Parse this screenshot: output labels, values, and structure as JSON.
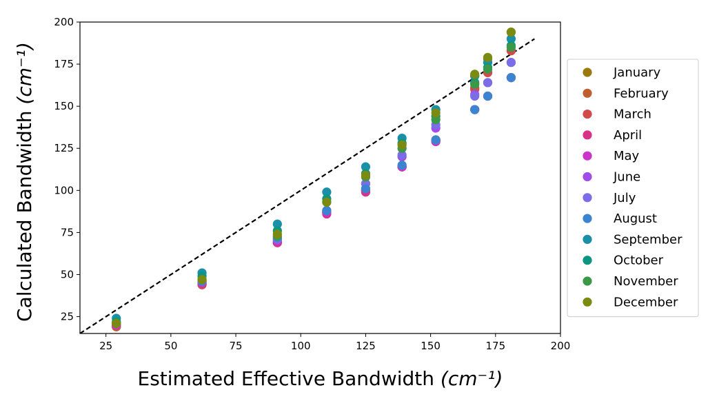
{
  "chart_data": {
    "type": "scatter",
    "xlabel": "Estimated Effective Bandwidth",
    "xlabel_unit": "(cm⁻¹)",
    "ylabel": "Calculated Bandwidth",
    "ylabel_unit": "(cm⁻¹)",
    "xlim": [
      15,
      200
    ],
    "ylim": [
      15,
      200
    ],
    "x_ticks": [
      25,
      50,
      75,
      100,
      125,
      150,
      175,
      200
    ],
    "y_ticks": [
      25,
      50,
      75,
      100,
      125,
      150,
      175,
      200
    ],
    "legend_position": "right",
    "grid": false,
    "reference_line": {
      "style": "dashed",
      "color": "#000000",
      "x": [
        15,
        190
      ],
      "y": [
        15,
        190
      ]
    },
    "x": [
      29,
      62,
      91,
      110,
      125,
      139,
      152,
      167,
      172,
      181
    ],
    "series": [
      {
        "name": "January",
        "color": "#9a7a0e",
        "values": [
          19,
          44,
          69,
          87,
          100,
          114,
          130,
          168,
          178,
          194
        ]
      },
      {
        "name": "February",
        "color": "#c05e30",
        "values": [
          19,
          44,
          69,
          87,
          100,
          114,
          130,
          161,
          170,
          183
        ]
      },
      {
        "name": "March",
        "color": "#d24a4a",
        "values": [
          20,
          44,
          69,
          87,
          100,
          114,
          130,
          160,
          170,
          183
        ]
      },
      {
        "name": "April",
        "color": "#d9308a",
        "values": [
          20,
          45,
          69,
          86,
          99,
          114,
          129,
          148,
          156,
          167
        ]
      },
      {
        "name": "May",
        "color": "#c934c9",
        "values": [
          20,
          45,
          70,
          87,
          101,
          114,
          129,
          148,
          156,
          167
        ]
      },
      {
        "name": "June",
        "color": "#a14ce8",
        "values": [
          21,
          46,
          71,
          88,
          104,
          120,
          137,
          157,
          164,
          176
        ]
      },
      {
        "name": "July",
        "color": "#7b6de8",
        "values": [
          21,
          46,
          71,
          88,
          104,
          121,
          139,
          156,
          164,
          176
        ]
      },
      {
        "name": "August",
        "color": "#3c84d0",
        "values": [
          21,
          46,
          72,
          88,
          101,
          115,
          130,
          148,
          156,
          167
        ]
      },
      {
        "name": "September",
        "color": "#1a8fa8",
        "values": [
          24,
          51,
          80,
          99,
          114,
          131,
          148,
          168,
          176,
          190
        ]
      },
      {
        "name": "October",
        "color": "#0e9582",
        "values": [
          22,
          49,
          76,
          95,
          110,
          128,
          144,
          164,
          173,
          186
        ]
      },
      {
        "name": "November",
        "color": "#3a9848",
        "values": [
          21,
          47,
          73,
          93,
          108,
          125,
          142,
          163,
          172,
          185
        ]
      },
      {
        "name": "December",
        "color": "#7b8a10",
        "values": [
          21,
          47,
          74,
          93,
          109,
          127,
          146,
          169,
          179,
          194
        ]
      }
    ]
  }
}
